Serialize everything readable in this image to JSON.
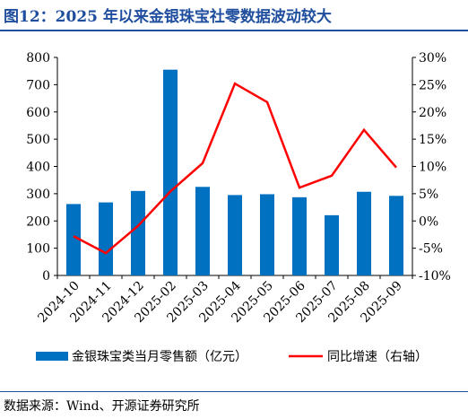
{
  "title": "图12：2025 年以来金银珠宝社零数据波动较大",
  "source": "数据来源：Wind、开源证券研究所",
  "chart_data": {
    "type": "bar",
    "categories": [
      "2024-10",
      "2024-11",
      "2024-12",
      "2025-02",
      "2025-03",
      "2025-04",
      "2025-05",
      "2025-06",
      "2025-07",
      "2025-08",
      "2025-09"
    ],
    "series": [
      {
        "name": "金银珠宝类当月零售额（亿元）",
        "type": "bar",
        "axis": "left",
        "color": "#0070c0",
        "values": [
          262,
          268,
          310,
          755,
          325,
          295,
          298,
          287,
          221,
          307,
          292
        ]
      },
      {
        "name": "同比增速（右轴）",
        "type": "line",
        "axis": "right",
        "color": "#ff0000",
        "values": [
          -2.8,
          -5.9,
          -0.9,
          5.4,
          10.6,
          25.2,
          21.8,
          6.1,
          8.3,
          16.7,
          9.8
        ]
      }
    ],
    "y_left": {
      "min": 0,
      "max": 800,
      "step": 100,
      "ticks": [
        "0",
        "100",
        "200",
        "300",
        "400",
        "500",
        "600",
        "700",
        "800"
      ]
    },
    "y_right": {
      "min": -10,
      "max": 30,
      "step": 5,
      "ticks": [
        "-10%",
        "-5%",
        "0%",
        "5%",
        "10%",
        "15%",
        "20%",
        "25%",
        "30%"
      ]
    },
    "legend_position": "bottom",
    "grid": false
  }
}
